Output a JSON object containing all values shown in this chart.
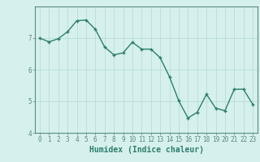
{
  "x": [
    0,
    1,
    2,
    3,
    4,
    5,
    6,
    7,
    8,
    9,
    10,
    11,
    12,
    13,
    14,
    15,
    16,
    17,
    18,
    19,
    20,
    21,
    22,
    23
  ],
  "y": [
    7.0,
    6.88,
    6.98,
    7.2,
    7.55,
    7.57,
    7.28,
    6.72,
    6.47,
    6.53,
    6.87,
    6.65,
    6.65,
    6.38,
    5.78,
    5.02,
    4.47,
    4.65,
    5.22,
    4.78,
    4.7,
    5.38,
    5.38,
    4.9
  ],
  "line_color": "#2d7d6e",
  "marker": "+",
  "marker_size": 3.5,
  "bg_color": "#d6f0ed",
  "grid_color": "#b8ddd9",
  "xlabel": "Humidex (Indice chaleur)",
  "ylim": [
    4,
    8
  ],
  "xlim": [
    -0.5,
    23.5
  ],
  "yticks": [
    4,
    5,
    6,
    7
  ],
  "xticks": [
    0,
    1,
    2,
    3,
    4,
    5,
    6,
    7,
    8,
    9,
    10,
    11,
    12,
    13,
    14,
    15,
    16,
    17,
    18,
    19,
    20,
    21,
    22,
    23
  ],
  "tick_fontsize": 5.5,
  "xlabel_fontsize": 7,
  "line_width": 1.0,
  "marker_color": "#2d7d6e",
  "spine_color": "#5a8a84"
}
